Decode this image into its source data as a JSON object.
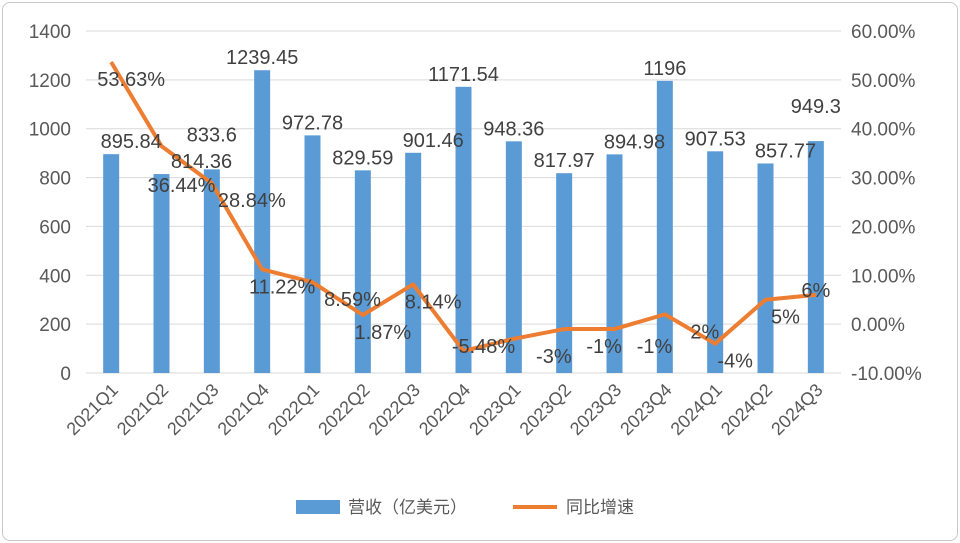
{
  "chart_data": {
    "type": "bar+line",
    "categories": [
      "2021Q1",
      "2021Q2",
      "2021Q3",
      "2021Q4",
      "2022Q1",
      "2022Q2",
      "2022Q3",
      "2022Q4",
      "2023Q1",
      "2023Q2",
      "2023Q3",
      "2023Q4",
      "2024Q1",
      "2024Q2",
      "2024Q3"
    ],
    "series": [
      {
        "name": "营收（亿美元）",
        "type": "bar",
        "axis": "left",
        "color": "#5b9bd5",
        "values": [
          895.84,
          814.36,
          833.6,
          1239.45,
          972.78,
          829.59,
          901.46,
          1171.54,
          948.36,
          817.97,
          894.98,
          1196,
          907.53,
          857.77,
          949.3
        ],
        "labels": [
          "895.84",
          "814.36",
          "833.6",
          "1239.45",
          "972.78",
          "829.59",
          "901.46",
          "1171.54",
          "948.36",
          "817.97",
          "894.98",
          "1196",
          "907.53",
          "857.77",
          "949.3"
        ]
      },
      {
        "name": "同比增速",
        "type": "line",
        "axis": "right",
        "color": "#ed7d31",
        "values": [
          53.63,
          36.44,
          28.84,
          11.22,
          8.59,
          1.87,
          8.14,
          -5.48,
          -3,
          -1,
          -1,
          2,
          -4,
          5,
          6
        ],
        "labels": [
          "53.63%",
          "36.44%",
          "28.84%",
          "11.22%",
          "8.59%",
          "1.87%",
          "8.14%",
          "-5.48%",
          "-3%",
          "-1%",
          "-1%",
          "2%",
          "-4%",
          "5%",
          "6%"
        ]
      }
    ],
    "left_axis": {
      "ylim": [
        0,
        1400
      ],
      "ticks": [
        "0",
        "200",
        "400",
        "600",
        "800",
        "1000",
        "1200",
        "1400"
      ]
    },
    "right_axis": {
      "ylim": [
        -10,
        60
      ],
      "ticks": [
        "-10.00%",
        "0.00%",
        "10.00%",
        "20.00%",
        "30.00%",
        "40.00%",
        "50.00%",
        "60.00%"
      ]
    },
    "grid": true,
    "legend": "bottom"
  }
}
